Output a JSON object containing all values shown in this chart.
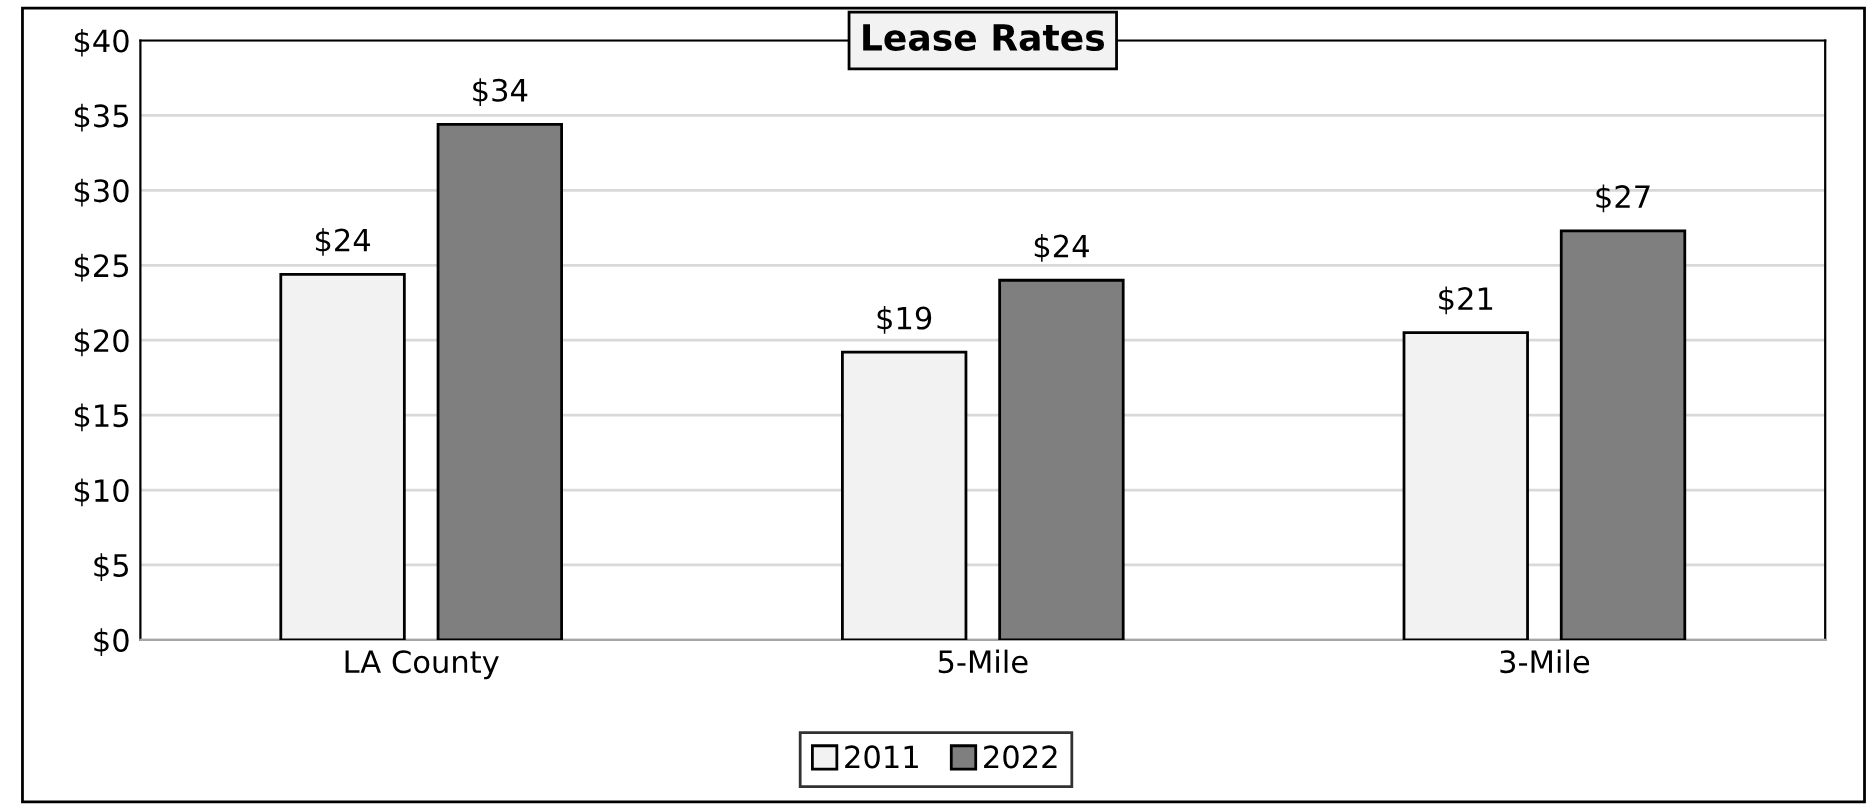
{
  "chart_data": {
    "type": "bar",
    "title": "Lease Rates",
    "categories": [
      "LA County",
      "5-Mile",
      "3-Mile"
    ],
    "series": [
      {
        "name": "2011",
        "color": "#f2f2f2",
        "values": [
          24.4,
          19.2,
          20.5
        ],
        "value_labels": [
          "$24",
          "$19",
          "$21"
        ]
      },
      {
        "name": "2022",
        "color": "#7f7f7f",
        "values": [
          34.4,
          24.0,
          27.3
        ],
        "value_labels": [
          "$34",
          "$24",
          "$27"
        ]
      }
    ],
    "ylim": [
      0,
      40
    ],
    "yticks": [
      {
        "value": 0,
        "label": "$0"
      },
      {
        "value": 5,
        "label": "$5"
      },
      {
        "value": 10,
        "label": "$10"
      },
      {
        "value": 15,
        "label": "$15"
      },
      {
        "value": 20,
        "label": "$20"
      },
      {
        "value": 25,
        "label": "$25"
      },
      {
        "value": 30,
        "label": "$30"
      },
      {
        "value": 35,
        "label": "$35"
      },
      {
        "value": 40,
        "label": "$40"
      }
    ],
    "grid": "y",
    "legend": "bottom"
  }
}
